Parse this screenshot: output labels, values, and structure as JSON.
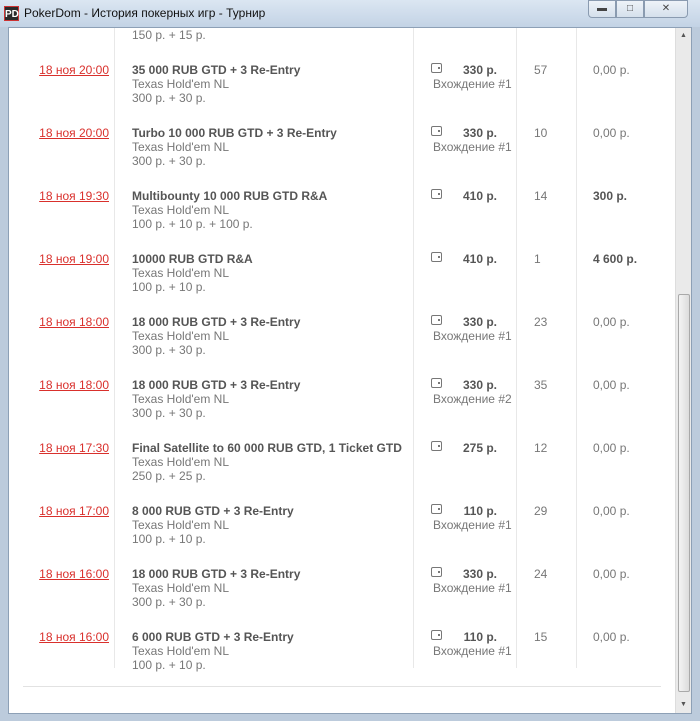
{
  "window": {
    "title": "PokerDom - История покерных игр - Турнир",
    "logo": "PD"
  },
  "partial_row": {
    "buyin": "150 р. + 15 р."
  },
  "rows": [
    {
      "date": "18 ноя 20:00",
      "name": "35 000 RUB GTD + 3 Re-Entry",
      "game": "Texas Hold'em NL",
      "buyin": "300 р. + 30 р.",
      "price": "330 р.",
      "entry": "Вхождение #1",
      "count": "57",
      "prize": "0,00 р.",
      "win": false
    },
    {
      "date": "18 ноя 20:00",
      "name": "Turbo 10 000 RUB GTD + 3 Re-Entry",
      "game": "Texas Hold'em NL",
      "buyin": "300 р. + 30 р.",
      "price": "330 р.",
      "entry": "Вхождение #1",
      "count": "10",
      "prize": "0,00 р.",
      "win": false
    },
    {
      "date": "18 ноя 19:30",
      "name": "Multibounty 10 000 RUB GTD R&A",
      "game": "Texas Hold'em NL",
      "buyin": "100 р. + 10 р. + 100 р.",
      "price": "410 р.",
      "entry": "",
      "count": "14",
      "prize": "300 р.",
      "win": true
    },
    {
      "date": "18 ноя 19:00",
      "name": "10000 RUB GTD R&A",
      "game": "Texas Hold'em NL",
      "buyin": "100 р. + 10 р.",
      "price": "410 р.",
      "entry": "",
      "count": "1",
      "prize": "4 600 р.",
      "win": true
    },
    {
      "date": "18 ноя 18:00",
      "name": "18 000 RUB GTD + 3 Re-Entry",
      "game": "Texas Hold'em NL",
      "buyin": "300 р. + 30 р.",
      "price": "330 р.",
      "entry": "Вхождение #1",
      "count": "23",
      "prize": "0,00 р.",
      "win": false
    },
    {
      "date": "18 ноя 18:00",
      "name": "18 000 RUB GTD + 3 Re-Entry",
      "game": "Texas Hold'em NL",
      "buyin": "300 р. + 30 р.",
      "price": "330 р.",
      "entry": "Вхождение #2",
      "count": "35",
      "prize": "0,00 р.",
      "win": false
    },
    {
      "date": "18 ноя 17:30",
      "name": "Final Satellite to 60 000 RUB GTD, 1 Ticket GTD",
      "game": "Texas Hold'em NL",
      "buyin": "250 р. + 25 р.",
      "price": "275 р.",
      "entry": "",
      "count": "12",
      "prize": "0,00 р.",
      "win": false
    },
    {
      "date": "18 ноя 17:00",
      "name": "8 000 RUB GTD + 3 Re-Entry",
      "game": "Texas Hold'em NL",
      "buyin": "100 р. + 10 р.",
      "price": "110 р.",
      "entry": "Вхождение #1",
      "count": "29",
      "prize": "0,00 р.",
      "win": false
    },
    {
      "date": "18 ноя 16:00",
      "name": "18 000 RUB GTD + 3 Re-Entry",
      "game": "Texas Hold'em NL",
      "buyin": "300 р. + 30 р.",
      "price": "330 р.",
      "entry": "Вхождение #1",
      "count": "24",
      "prize": "0,00 р.",
      "win": false
    },
    {
      "date": "18 ноя 16:00",
      "name": "6 000 RUB GTD + 3 Re-Entry",
      "game": "Texas Hold'em NL",
      "buyin": "100 р. + 10 р.",
      "price": "110 р.",
      "entry": "Вхождение #1",
      "count": "15",
      "prize": "0,00 р.",
      "win": false
    }
  ]
}
